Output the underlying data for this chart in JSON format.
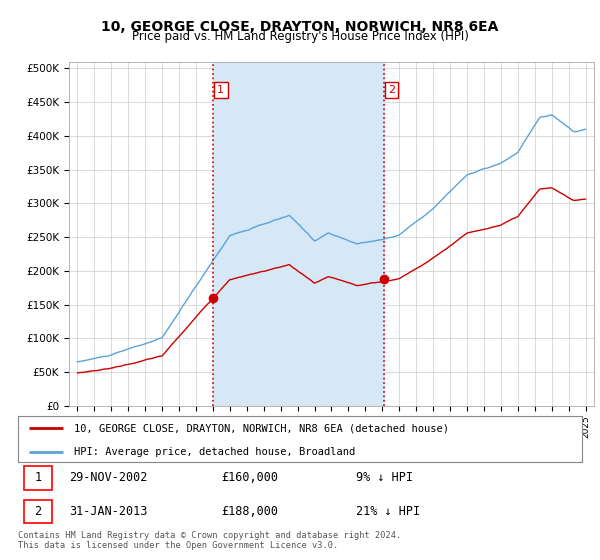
{
  "title": "10, GEORGE CLOSE, DRAYTON, NORWICH, NR8 6EA",
  "subtitle": "Price paid vs. HM Land Registry's House Price Index (HPI)",
  "ylabel_ticks": [
    "£0",
    "£50K",
    "£100K",
    "£150K",
    "£200K",
    "£250K",
    "£300K",
    "£350K",
    "£400K",
    "£450K",
    "£500K"
  ],
  "ytick_values": [
    0,
    50000,
    100000,
    150000,
    200000,
    250000,
    300000,
    350000,
    400000,
    450000,
    500000
  ],
  "ylim": [
    0,
    510000
  ],
  "hpi_color": "#5ba3d9",
  "price_color": "#cc0000",
  "vline_color": "#cc0000",
  "shade_color": "#d6e8f5",
  "background_color": "#ffffff",
  "grid_color": "#cccccc",
  "purchase1_x": 2003.0,
  "purchase1_price": 160000,
  "purchase2_x": 2013.08,
  "purchase2_price": 188000,
  "legend_line1": "10, GEORGE CLOSE, DRAYTON, NORWICH, NR8 6EA (detached house)",
  "legend_line2": "HPI: Average price, detached house, Broadland",
  "footer": "Contains HM Land Registry data © Crown copyright and database right 2024.\nThis data is licensed under the Open Government Licence v3.0.",
  "xmin": 1994.5,
  "xmax": 2025.5
}
